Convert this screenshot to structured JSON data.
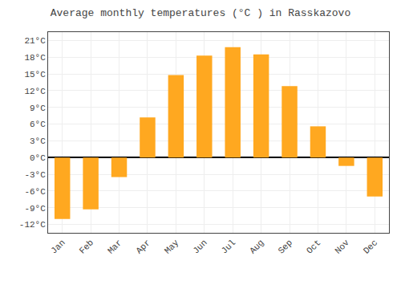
{
  "chart_data": {
    "type": "bar",
    "title": "Average monthly temperatures (°C ) in Rasskazovo",
    "categories": [
      "Jan",
      "Feb",
      "Mar",
      "Apr",
      "May",
      "Jun",
      "Jul",
      "Aug",
      "Sep",
      "Oct",
      "Nov",
      "Dec"
    ],
    "values": [
      -11.0,
      -9.3,
      -3.5,
      7.2,
      14.8,
      18.3,
      19.8,
      18.5,
      12.8,
      5.6,
      -1.5,
      -7.0
    ],
    "color": "#FFA820",
    "ylim": [
      -13.5,
      22.5
    ],
    "yticks": [
      {
        "value": -12,
        "label": "-12°C"
      },
      {
        "value": -9,
        "label": "-9°C"
      },
      {
        "value": -6,
        "label": "-6°C"
      },
      {
        "value": -3,
        "label": "-3°C"
      },
      {
        "value": 0,
        "label": "0°C"
      },
      {
        "value": 3,
        "label": "3°C"
      },
      {
        "value": 6,
        "label": "6°C"
      },
      {
        "value": 9,
        "label": "9°C"
      },
      {
        "value": 12,
        "label": "12°C"
      },
      {
        "value": 15,
        "label": "15°C"
      },
      {
        "value": 18,
        "label": "18°C"
      },
      {
        "value": 21,
        "label": "21°C"
      }
    ],
    "grid": true
  }
}
